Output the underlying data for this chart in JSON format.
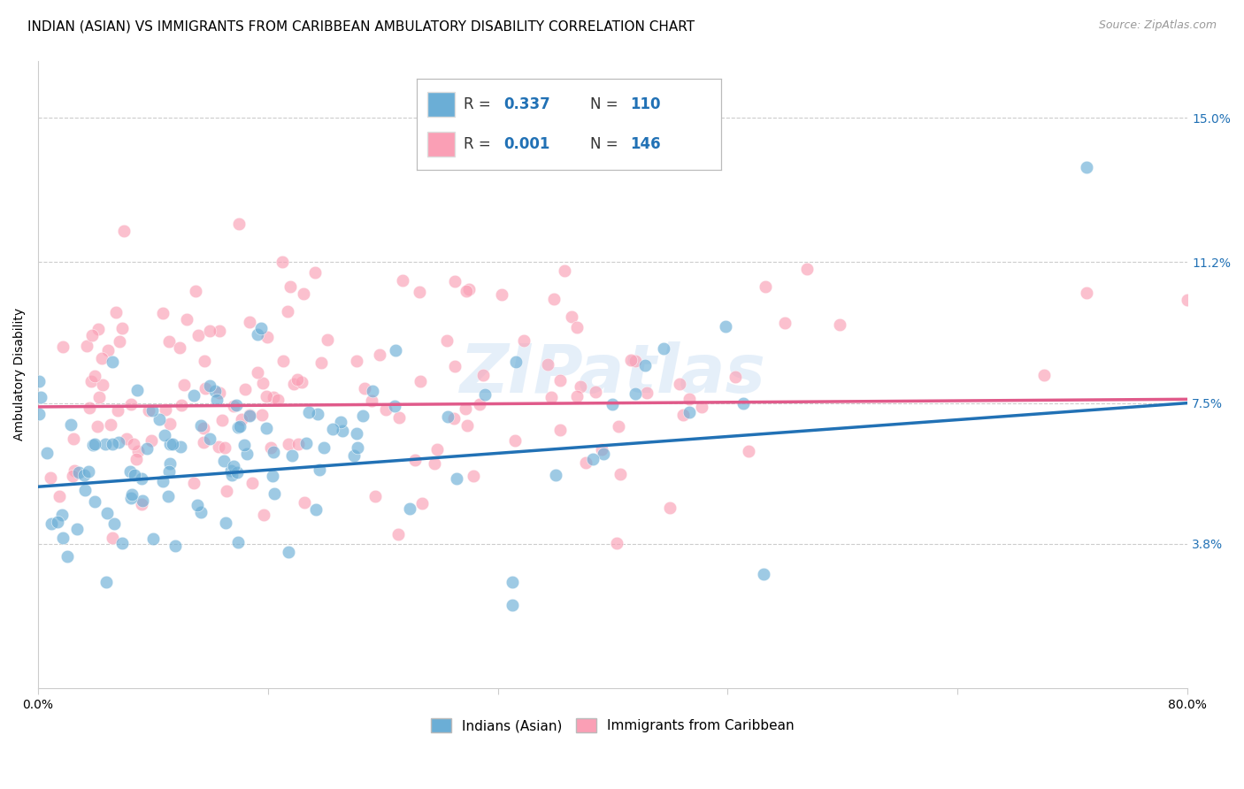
{
  "title": "INDIAN (ASIAN) VS IMMIGRANTS FROM CARIBBEAN AMBULATORY DISABILITY CORRELATION CHART",
  "source": "Source: ZipAtlas.com",
  "ylabel": "Ambulatory Disability",
  "xlim": [
    0.0,
    0.8
  ],
  "ylim": [
    0.0,
    0.165
  ],
  "yticks": [
    0.038,
    0.075,
    0.112,
    0.15
  ],
  "ytick_labels": [
    "3.8%",
    "7.5%",
    "11.2%",
    "15.0%"
  ],
  "xticks": [
    0.0,
    0.16,
    0.32,
    0.48,
    0.64,
    0.8
  ],
  "xtick_labels": [
    "0.0%",
    "",
    "",
    "",
    "",
    "80.0%"
  ],
  "legend_labels": [
    "Indians (Asian)",
    "Immigrants from Caribbean"
  ],
  "blue_color": "#6baed6",
  "pink_color": "#fa9fb5",
  "blue_line_color": "#2171b5",
  "pink_line_color": "#e05a8a",
  "blue_R": 0.337,
  "blue_N": 110,
  "pink_R": 0.001,
  "pink_N": 146,
  "watermark": "ZIPatlas",
  "title_fontsize": 11,
  "axis_label_fontsize": 10,
  "tick_fontsize": 10,
  "legend_box_color": "#cccccc"
}
